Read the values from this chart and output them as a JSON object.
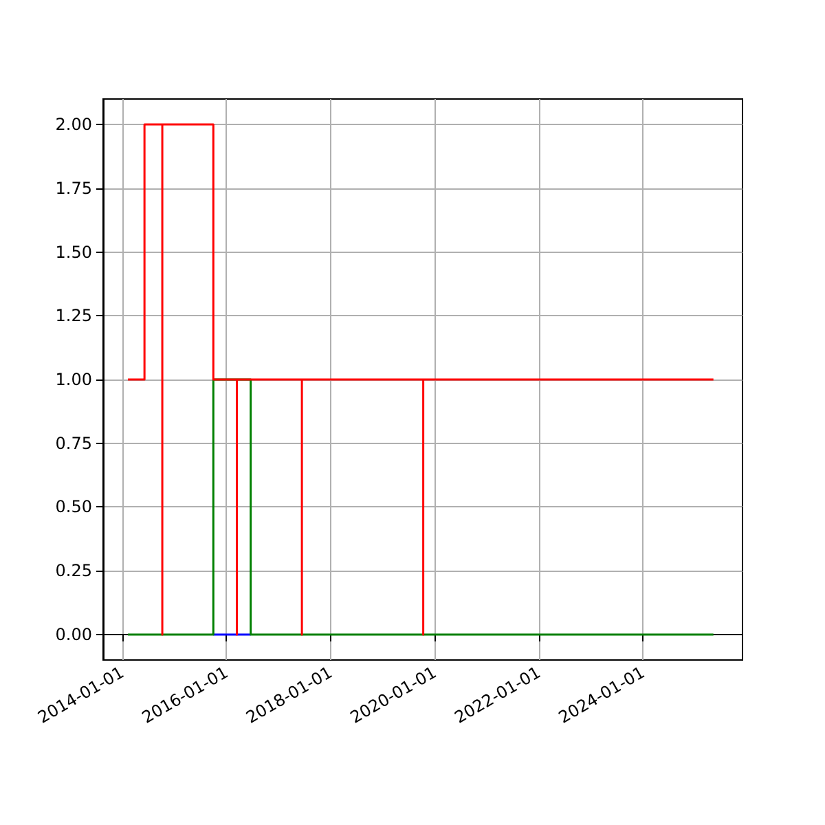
{
  "chart_data": {
    "type": "step",
    "xlim": [
      "2013-08-19",
      "2025-11-28"
    ],
    "xticks": [
      {
        "value": "2014-01-01",
        "label": "2014-01-01"
      },
      {
        "value": "2016-01-01",
        "label": "2016-01-01"
      },
      {
        "value": "2018-01-01",
        "label": "2018-01-01"
      },
      {
        "value": "2020-01-01",
        "label": "2020-01-01"
      },
      {
        "value": "2022-01-01",
        "label": "2022-01-01"
      },
      {
        "value": "2024-01-01",
        "label": "2024-01-01"
      }
    ],
    "ylim": [
      -0.1,
      2.1
    ],
    "yticks": [
      {
        "value": 0,
        "label": "0.00"
      },
      {
        "value": 0.25,
        "label": "0.25"
      },
      {
        "value": 0.5,
        "label": "0.50"
      },
      {
        "value": 0.75,
        "label": "0.75"
      },
      {
        "value": 1,
        "label": "1.00"
      },
      {
        "value": 1.25,
        "label": "1.25"
      },
      {
        "value": 1.5,
        "label": "1.50"
      },
      {
        "value": 1.75,
        "label": "1.75"
      },
      {
        "value": 2,
        "label": "2.00"
      }
    ],
    "grid": true,
    "marker": "none",
    "line_style": "solid",
    "series": [
      {
        "color": "#0000ff",
        "x": [
          "2015-10-01",
          "2016-06-19"
        ],
        "values": [
          0,
          0
        ]
      },
      {
        "color": "#008000",
        "x": [
          "2014-02-09",
          "2015-10-01",
          "2016-06-19",
          "2025-05-08"
        ],
        "values": [
          0,
          1,
          0,
          0
        ]
      },
      {
        "color": "#ff0000",
        "x": [
          "2014-02-09",
          "2014-06-05",
          "2014-10-08",
          "2014-10-08",
          "2015-10-01",
          "2016-03-14",
          "2016-03-14",
          "2017-06-13",
          "2017-06-13",
          "2019-10-12",
          "2019-10-12",
          "2025-05-08"
        ],
        "values": [
          1,
          2,
          0,
          2,
          1,
          0,
          1,
          0,
          1,
          0,
          1,
          1
        ]
      }
    ]
  }
}
